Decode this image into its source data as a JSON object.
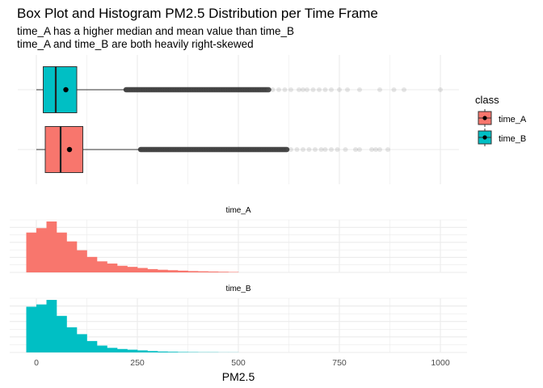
{
  "title": "Box Plot and Histogram PM2.5 Distribution per Time Frame",
  "subtitle_lines": [
    "time_A has a higher median and mean value than time_B",
    "time_A and time_B are both heavily right-skewed"
  ],
  "colors": {
    "time_A": "#F8766D",
    "time_B": "#00BFC4",
    "grid": "#EBEBEB",
    "outlier": "#333333"
  },
  "chart_data": [
    {
      "type": "box",
      "categories": [
        "time_A",
        "time_B"
      ],
      "series": [
        {
          "name": "time_A",
          "q1": 22,
          "median": 60,
          "q3": 115,
          "mean": 82,
          "whisker_low": 0,
          "whisker_high": 258,
          "outlier_dense_to": 620,
          "outliers_sparse": [
            630,
            645,
            660,
            675,
            690,
            705,
            715,
            730,
            745,
            765,
            790,
            800,
            830,
            840,
            850,
            870
          ]
        },
        {
          "name": "time_B",
          "q1": 17,
          "median": 48,
          "q3": 100,
          "mean": 73,
          "whisker_low": 0,
          "whisker_high": 222,
          "outlier_dense_to": 575,
          "outliers_sparse": [
            585,
            600,
            615,
            630,
            650,
            660,
            670,
            685,
            700,
            715,
            730,
            750,
            770,
            800,
            850,
            885,
            910,
            1000
          ]
        }
      ],
      "legend": {
        "title": "class",
        "entries": [
          "time_A",
          "time_B"
        ],
        "position": "right"
      }
    },
    {
      "type": "bar",
      "facets": [
        "time_A",
        "time_B"
      ],
      "xlabel": "PM2.5",
      "xlim": [
        -20,
        1050
      ],
      "x_ticks": [
        0,
        250,
        500,
        750,
        1000
      ],
      "bin_width": 25,
      "bin_starts": [
        -25,
        0,
        25,
        50,
        75,
        100,
        125,
        150,
        175,
        200,
        225,
        250,
        275,
        300,
        325,
        350,
        375,
        400,
        425,
        450,
        475
      ],
      "series": [
        {
          "name": "time_A",
          "values": [
            18,
            20,
            23,
            18,
            14,
            10,
            7,
            5,
            4,
            3,
            2.5,
            2,
            1.5,
            1.2,
            1,
            0.8,
            0.6,
            0.5,
            0.4,
            0.3,
            0.2
          ]
        },
        {
          "name": "time_B",
          "values": [
            20,
            21,
            23,
            16,
            11,
            8,
            5,
            3,
            2,
            1.5,
            1.2,
            0.9,
            0.6,
            0.4,
            0.3,
            0.2,
            0.15,
            0.1,
            0.1,
            0.05,
            0.05
          ]
        }
      ]
    }
  ]
}
